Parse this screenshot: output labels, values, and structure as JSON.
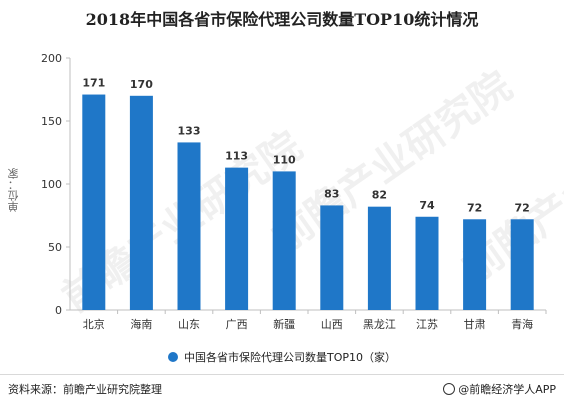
{
  "title": "2018年中国各省市保险代理公司数量TOP10统计情况",
  "y_axis_label": "单位：家",
  "legend_label": "中国各省市保险代理公司数量TOP10（家）",
  "source": "资料来源：前瞻产业研究院整理",
  "credit": "@前瞻经济学人APP",
  "watermark": "前瞻产业研究院",
  "colors": {
    "bar": "#1f77c8",
    "axis": "#bfbfbf",
    "text": "#333333"
  },
  "chart_data": {
    "type": "bar",
    "categories": [
      "北京",
      "海南",
      "山东",
      "广西",
      "新疆",
      "山西",
      "黑龙江",
      "江苏",
      "甘肃",
      "青海"
    ],
    "values": [
      171,
      170,
      133,
      113,
      110,
      83,
      82,
      74,
      72,
      72
    ],
    "ylim": [
      0,
      200
    ],
    "yticks": [
      0,
      50,
      100,
      150,
      200
    ],
    "grid": false,
    "legend_position": "bottom"
  }
}
